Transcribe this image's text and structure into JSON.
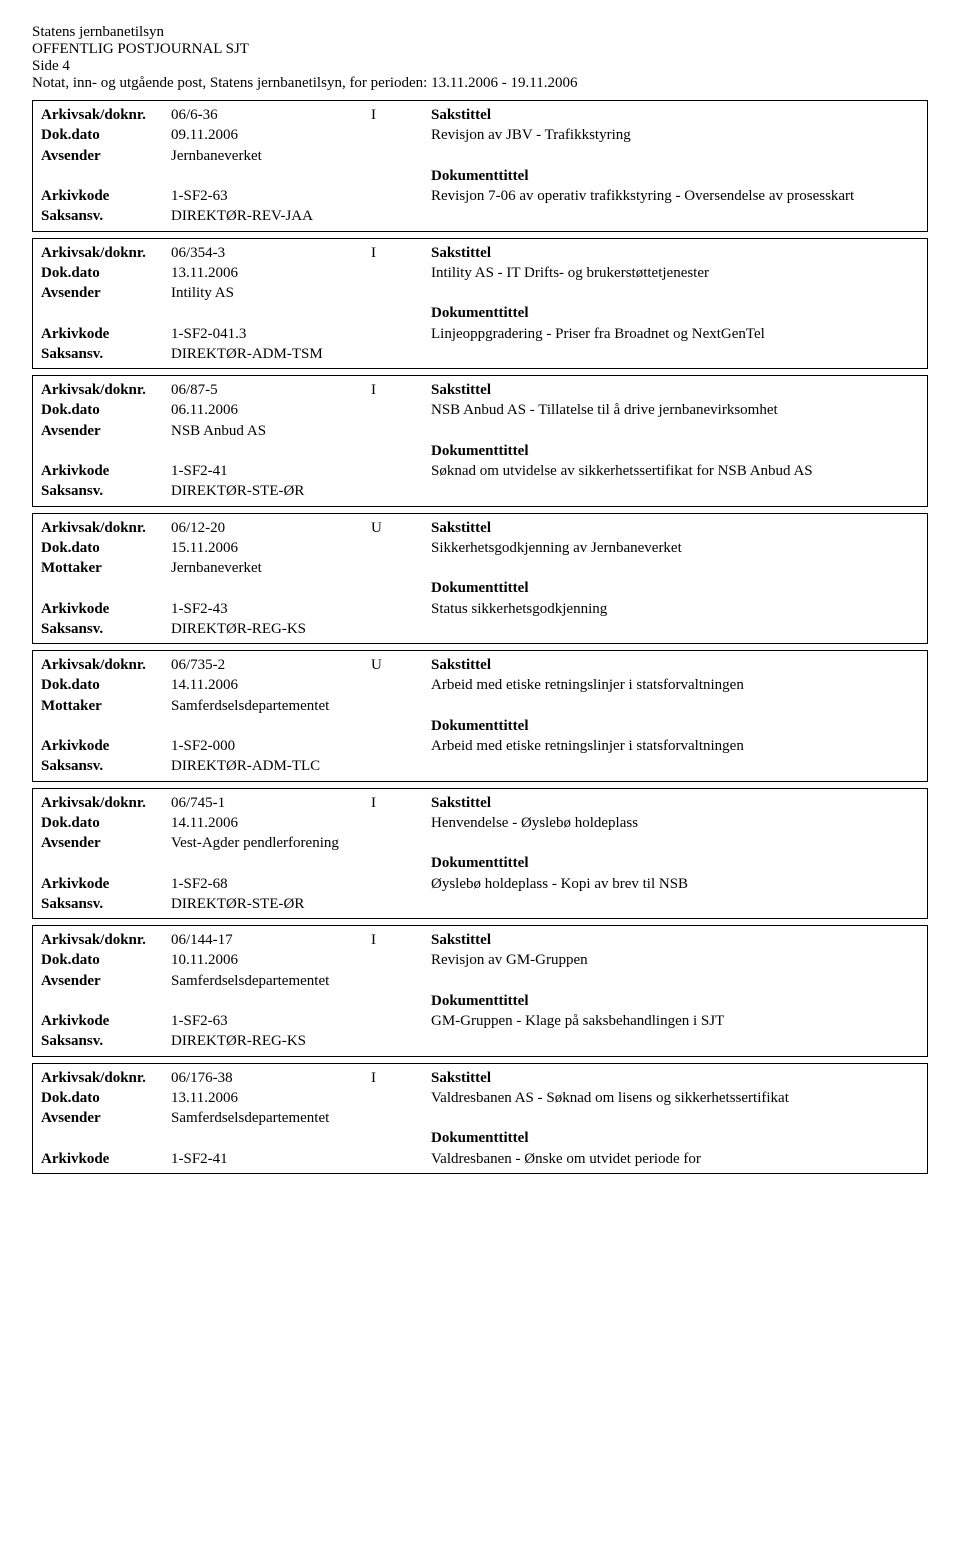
{
  "header": {
    "line1": "Statens jernbanetilsyn",
    "line2": "OFFENTLIG POSTJOURNAL SJT",
    "line3": "Side 4",
    "line4": "Notat, inn- og utgående post, Statens jernbanetilsyn, for perioden: 13.11.2006 - 19.11.2006"
  },
  "labels": {
    "arkivsak": "Arkivsak/doknr.",
    "dokdato": "Dok.dato",
    "avsender": "Avsender",
    "mottaker": "Mottaker",
    "arkivkode": "Arkivkode",
    "saksansv": "Saksansv.",
    "sakstittel": "Sakstittel",
    "dokumenttittel": "Dokumenttittel"
  },
  "records": [
    {
      "arkivsak": "06/6-36",
      "io": "I",
      "dokdato": "09.11.2006",
      "partyLabel": "Avsender",
      "party": "Jernbaneverket",
      "arkivkode": "1-SF2-63",
      "saksansv": "DIREKTØR-REV-JAA",
      "sakstittel": "Revisjon av JBV - Trafikkstyring",
      "dokumenttittel": "Revisjon 7-06 av operativ trafikkstyring - Oversendelse av prosesskart"
    },
    {
      "arkivsak": "06/354-3",
      "io": "I",
      "dokdato": "13.11.2006",
      "partyLabel": "Avsender",
      "party": "Intility AS",
      "arkivkode": "1-SF2-041.3",
      "saksansv": "DIREKTØR-ADM-TSM",
      "sakstittel": "Intility AS - IT Drifts- og brukerstøttetjenester",
      "dokumenttittel": "Linjeoppgradering - Priser fra Broadnet og NextGenTel"
    },
    {
      "arkivsak": "06/87-5",
      "io": "I",
      "dokdato": "06.11.2006",
      "partyLabel": "Avsender",
      "party": "NSB Anbud AS",
      "arkivkode": "1-SF2-41",
      "saksansv": "DIREKTØR-STE-ØR",
      "sakstittel": "NSB Anbud AS - Tillatelse til å drive jernbanevirksomhet",
      "dokumenttittel": "Søknad om utvidelse av sikkerhetssertifikat for NSB Anbud AS"
    },
    {
      "arkivsak": "06/12-20",
      "io": "U",
      "dokdato": "15.11.2006",
      "partyLabel": "Mottaker",
      "party": "Jernbaneverket",
      "arkivkode": "1-SF2-43",
      "saksansv": "DIREKTØR-REG-KS",
      "sakstittel": "Sikkerhetsgodkjenning av Jernbaneverket",
      "dokumenttittel": "Status sikkerhetsgodkjenning"
    },
    {
      "arkivsak": "06/735-2",
      "io": "U",
      "dokdato": "14.11.2006",
      "partyLabel": "Mottaker",
      "party": "Samferdselsdepartementet",
      "arkivkode": "1-SF2-000",
      "saksansv": "DIREKTØR-ADM-TLC",
      "sakstittel": "Arbeid med etiske retningslinjer i statsforvaltningen",
      "dokumenttittel": "Arbeid med etiske retningslinjer i statsforvaltningen"
    },
    {
      "arkivsak": "06/745-1",
      "io": "I",
      "dokdato": "14.11.2006",
      "partyLabel": "Avsender",
      "party": "Vest-Agder pendlerforening",
      "arkivkode": "1-SF2-68",
      "saksansv": "DIREKTØR-STE-ØR",
      "sakstittel": "Henvendelse - Øyslebø holdeplass",
      "dokumenttittel": "Øyslebø holdeplass - Kopi av brev til NSB"
    },
    {
      "arkivsak": "06/144-17",
      "io": "I",
      "dokdato": "10.11.2006",
      "partyLabel": "Avsender",
      "party": "Samferdselsdepartementet",
      "arkivkode": "1-SF2-63",
      "saksansv": "DIREKTØR-REG-KS",
      "sakstittel": "Revisjon av GM-Gruppen",
      "dokumenttittel": "GM-Gruppen - Klage på saksbehandlingen i SJT"
    },
    {
      "arkivsak": "06/176-38",
      "io": "I",
      "dokdato": "13.11.2006",
      "partyLabel": "Avsender",
      "party": "Samferdselsdepartementet",
      "arkivkode": "1-SF2-41",
      "saksansv": "",
      "sakstittel": "Valdresbanen AS - Søknad om lisens og sikkerhetssertifikat",
      "dokumenttittel": "Valdresbanen - Ønske om utvidet periode for",
      "noSaksansv": true
    }
  ]
}
